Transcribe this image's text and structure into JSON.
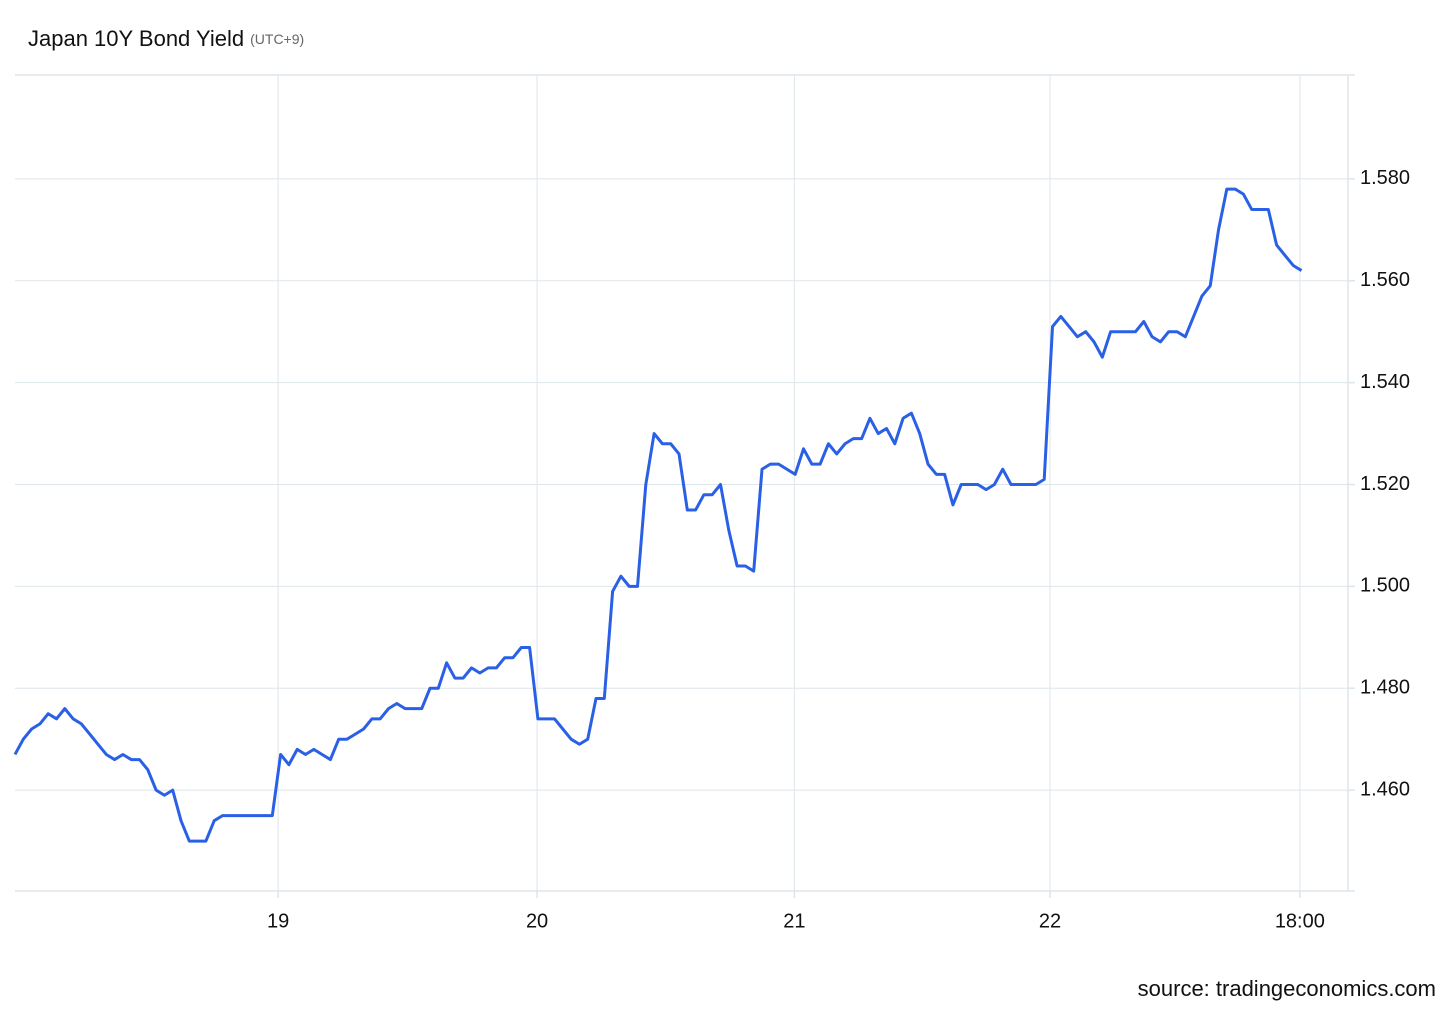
{
  "chart_data": {
    "type": "line",
    "title": "Japan 10Y Bond Yield",
    "subtitle": "(UTC+9)",
    "source": "source: tradingeconomics.com",
    "x": [
      0,
      1,
      2,
      3,
      4,
      5,
      6,
      7,
      8,
      9,
      10,
      11,
      12,
      13,
      14,
      15,
      16,
      17,
      18,
      19,
      20,
      21,
      22,
      23,
      24,
      25,
      26,
      27,
      28,
      29,
      30,
      31,
      32,
      33,
      34,
      35,
      36,
      37,
      38,
      39,
      40,
      41,
      42,
      43,
      44,
      45,
      46,
      47,
      48,
      49,
      50,
      51,
      52,
      53,
      54,
      55,
      56,
      57,
      58,
      59,
      60,
      61,
      62,
      63,
      64,
      65,
      66,
      67,
      68,
      69,
      70,
      71,
      72,
      73,
      74,
      75,
      76,
      77,
      78,
      79,
      80,
      81,
      82,
      83,
      84,
      85,
      86,
      87,
      88,
      89,
      90,
      91,
      92,
      93,
      94,
      95,
      96,
      97,
      98,
      99,
      100,
      101,
      102,
      103,
      104,
      105,
      106,
      107,
      108,
      109,
      110,
      111,
      112,
      113,
      114,
      115,
      116,
      117,
      118,
      119,
      120,
      121,
      122,
      123,
      124,
      125,
      126,
      127,
      128,
      129,
      130,
      131,
      132,
      133,
      134,
      135,
      136,
      137,
      138,
      139,
      140,
      141,
      142,
      143,
      144,
      145,
      146,
      147,
      148,
      149,
      150,
      151,
      152,
      153,
      154,
      155
    ],
    "series": [
      {
        "name": "Japan 10Y Bond Yield",
        "color": "#2a60e6",
        "values": [
          1.467,
          1.47,
          1.472,
          1.473,
          1.475,
          1.474,
          1.476,
          1.474,
          1.473,
          1.471,
          1.469,
          1.467,
          1.466,
          1.467,
          1.466,
          1.466,
          1.464,
          1.46,
          1.459,
          1.46,
          1.454,
          1.45,
          1.45,
          1.45,
          1.454,
          1.455,
          1.455,
          1.455,
          1.455,
          1.455,
          1.455,
          1.455,
          1.467,
          1.465,
          1.468,
          1.467,
          1.468,
          1.467,
          1.466,
          1.47,
          1.47,
          1.471,
          1.472,
          1.474,
          1.474,
          1.476,
          1.477,
          1.476,
          1.476,
          1.476,
          1.48,
          1.48,
          1.485,
          1.482,
          1.482,
          1.484,
          1.483,
          1.484,
          1.484,
          1.486,
          1.486,
          1.488,
          1.488,
          1.474,
          1.474,
          1.474,
          1.472,
          1.47,
          1.469,
          1.47,
          1.478,
          1.478,
          1.499,
          1.502,
          1.5,
          1.5,
          1.52,
          1.53,
          1.528,
          1.528,
          1.526,
          1.515,
          1.515,
          1.518,
          1.518,
          1.52,
          1.511,
          1.504,
          1.504,
          1.503,
          1.523,
          1.524,
          1.524,
          1.523,
          1.522,
          1.527,
          1.524,
          1.524,
          1.528,
          1.526,
          1.528,
          1.529,
          1.529,
          1.533,
          1.53,
          1.531,
          1.528,
          1.533,
          1.534,
          1.53,
          1.524,
          1.522,
          1.522,
          1.516,
          1.52,
          1.52,
          1.52,
          1.519,
          1.52,
          1.523,
          1.52,
          1.52,
          1.52,
          1.52,
          1.521,
          1.551,
          1.553,
          1.551,
          1.549,
          1.55,
          1.548,
          1.545,
          1.55,
          1.55,
          1.55,
          1.55,
          1.552,
          1.549,
          1.548,
          1.55,
          1.55,
          1.549,
          1.553,
          1.557,
          1.559,
          1.57,
          1.578,
          1.578,
          1.577,
          1.574,
          1.574,
          1.574,
          1.567,
          1.565,
          1.563,
          1.562
        ]
      }
    ],
    "xlim": [
      0,
      160.6
    ],
    "xticks": [
      {
        "value": 31.7,
        "label": "19"
      },
      {
        "value": 62.9,
        "label": "20"
      },
      {
        "value": 93.9,
        "label": "21"
      },
      {
        "value": 124.7,
        "label": "22"
      },
      {
        "value": 154.8,
        "label": "18:00"
      }
    ],
    "ylim": [
      1.44,
      1.6
    ],
    "yticks": [
      {
        "value": 1.46,
        "label": "1.460"
      },
      {
        "value": 1.48,
        "label": "1.480"
      },
      {
        "value": 1.5,
        "label": "1.500"
      },
      {
        "value": 1.52,
        "label": "1.520"
      },
      {
        "value": 1.54,
        "label": "1.540"
      },
      {
        "value": 1.56,
        "label": "1.560"
      },
      {
        "value": 1.58,
        "label": "1.580"
      }
    ],
    "grid": true
  }
}
